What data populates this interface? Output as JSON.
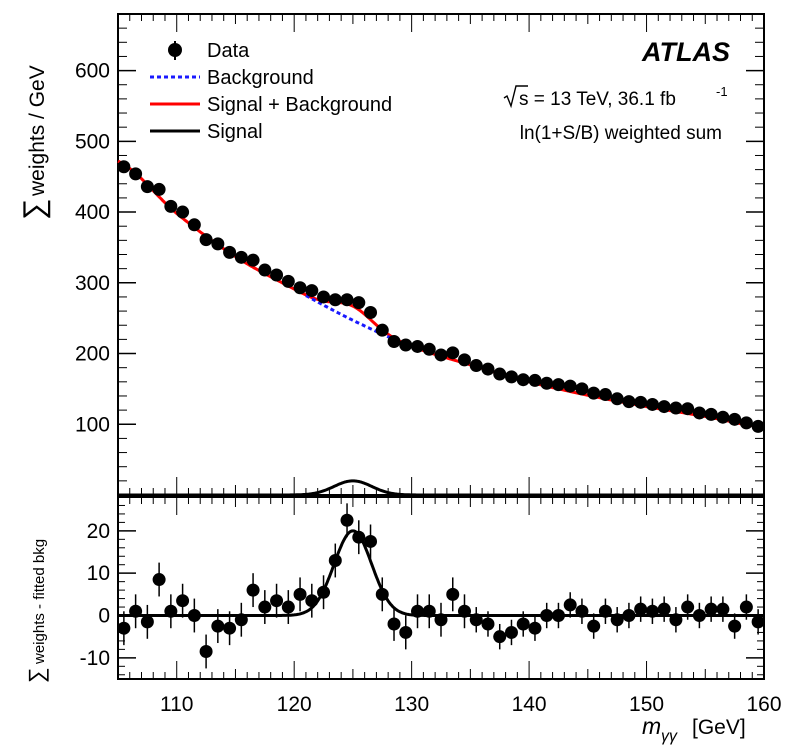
{
  "chart_data": [
    {
      "type": "scatter",
      "panel": "main",
      "experiment": "ATLAS",
      "energy_label": "s = 13 TeV, 36.1 fb",
      "lumi_superscript": "-1",
      "weighting_label": "ln(1+S/B) weighted sum",
      "ylabel_sum_symbol": "∑",
      "ylabel": "weights / GeV",
      "xlim": [
        105,
        160
      ],
      "ylim": [
        0,
        680
      ],
      "y_ticks": [
        100,
        200,
        300,
        400,
        500,
        600
      ],
      "legend": {
        "data": "Data",
        "background": "Background",
        "signal_plus_background": "Signal + Background",
        "signal": "Signal"
      },
      "colors": {
        "data": "#000000",
        "background": "#1a1aff",
        "signal_plus_background": "#ff0000",
        "signal": "#000000"
      },
      "signal_model": {
        "mass": 125.0,
        "width": 1.6,
        "amplitude": 20
      },
      "background_points": [
        [
          105,
          472
        ],
        [
          110,
          398
        ],
        [
          115,
          337
        ],
        [
          120,
          291
        ],
        [
          125,
          247
        ],
        [
          130,
          210
        ],
        [
          135,
          184
        ],
        [
          140,
          160
        ],
        [
          145,
          141
        ],
        [
          150,
          125
        ],
        [
          155,
          111
        ],
        [
          160,
          96
        ]
      ],
      "data_x": [
        105.5,
        106.5,
        107.5,
        108.5,
        109.5,
        110.5,
        111.5,
        112.5,
        113.5,
        114.5,
        115.5,
        116.5,
        117.5,
        118.5,
        119.5,
        120.5,
        121.5,
        122.5,
        123.5,
        124.5,
        125.5,
        126.5,
        127.5,
        128.5,
        129.5,
        130.5,
        131.5,
        132.5,
        133.5,
        134.5,
        135.5,
        136.5,
        137.5,
        138.5,
        139.5,
        140.5,
        141.5,
        142.5,
        143.5,
        144.5,
        145.5,
        146.5,
        147.5,
        148.5,
        149.5,
        150.5,
        151.5,
        152.5,
        153.5,
        154.5,
        155.5,
        156.5,
        157.5,
        158.5,
        159.5
      ],
      "data_y": [
        464,
        454,
        436,
        432,
        408,
        400,
        382,
        361,
        355,
        343,
        336,
        332,
        318,
        311,
        302,
        293,
        289,
        280,
        276,
        276,
        272,
        258,
        233,
        217,
        212,
        210,
        206,
        198,
        201,
        191,
        183,
        178,
        171,
        167,
        163,
        162,
        158,
        156,
        154,
        150,
        144,
        142,
        136,
        132,
        131,
        128,
        125,
        123,
        122,
        116,
        114,
        110,
        107,
        102,
        97
      ],
      "data_err": [
        7,
        7,
        7,
        7,
        6,
        6,
        6,
        6,
        6,
        6,
        6,
        6,
        6,
        5,
        5,
        5,
        5,
        5,
        5,
        5,
        5,
        5,
        5,
        5,
        5,
        5,
        5,
        5,
        5,
        5,
        4,
        4,
        4,
        4,
        4,
        4,
        4,
        4,
        4,
        4,
        4,
        4,
        4,
        4,
        4,
        4,
        4,
        4,
        4,
        4,
        4,
        4,
        4,
        4,
        4
      ]
    },
    {
      "type": "scatter",
      "panel": "residual",
      "ylabel_sum_symbol": "∑",
      "ylabel": "weights - fitted bkg",
      "xlabel": "[GeV]",
      "xlabel_symbol": "m",
      "xlabel_subscript": "γγ",
      "xlim": [
        105,
        160
      ],
      "ylim": [
        -15,
        28
      ],
      "x_ticks": [
        110,
        120,
        130,
        140,
        150,
        160
      ],
      "y_ticks": [
        -10,
        0,
        10,
        20
      ],
      "res_x": [
        105.5,
        106.5,
        107.5,
        108.5,
        109.5,
        110.5,
        111.5,
        112.5,
        113.5,
        114.5,
        115.5,
        116.5,
        117.5,
        118.5,
        119.5,
        120.5,
        121.5,
        122.5,
        123.5,
        124.5,
        125.5,
        126.5,
        127.5,
        128.5,
        129.5,
        130.5,
        131.5,
        132.5,
        133.5,
        134.5,
        135.5,
        136.5,
        137.5,
        138.5,
        139.5,
        140.5,
        141.5,
        142.5,
        143.5,
        144.5,
        145.5,
        146.5,
        147.5,
        148.5,
        149.5,
        150.5,
        151.5,
        152.5,
        153.5,
        154.5,
        155.5,
        156.5,
        157.5,
        158.5,
        159.5
      ],
      "res_y": [
        -3,
        1,
        -1.5,
        8.5,
        1,
        3.5,
        0,
        -8.5,
        -2.5,
        -3,
        -1,
        6,
        2,
        3.5,
        2,
        5,
        3.5,
        5.5,
        13,
        22.5,
        18.5,
        17.5,
        5,
        -2,
        -4,
        1,
        1,
        -1,
        5,
        1,
        -1,
        -2,
        -5,
        -4,
        -2,
        -3,
        0,
        0,
        2.5,
        1,
        -2.5,
        1,
        -1,
        0,
        1.5,
        1,
        1.5,
        -1,
        2,
        0,
        1.5,
        1.5,
        -2.5,
        2,
        -1.5
      ],
      "res_err": [
        4,
        4,
        4,
        4,
        4,
        4,
        4,
        4,
        4,
        4,
        4,
        4,
        4,
        4,
        4,
        4,
        4,
        4,
        4,
        4,
        4,
        4,
        4,
        4,
        4,
        4,
        4,
        4,
        4,
        4,
        3,
        3,
        3,
        3,
        3,
        3,
        3,
        3,
        3,
        3,
        3,
        3,
        3,
        3,
        3,
        3,
        3,
        3,
        3,
        3,
        3,
        3,
        3,
        3,
        3
      ]
    }
  ]
}
